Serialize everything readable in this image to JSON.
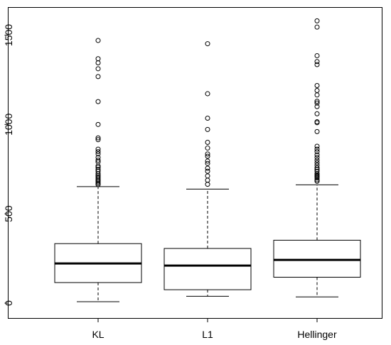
{
  "chart_data": {
    "type": "boxplot",
    "title": "",
    "xlabel": "",
    "ylabel": "",
    "ylim": [
      -20,
      1600
    ],
    "y_ticks": [
      0,
      500,
      1000,
      1500
    ],
    "y_tick_labels": [
      "0",
      "500",
      "1000",
      "1500"
    ],
    "grid": false,
    "categories": [
      "KL",
      "L1",
      "Hellinger"
    ],
    "boxes": [
      {
        "name": "KL",
        "whisker_low": 8,
        "q1": 115,
        "median": 222,
        "q3": 333,
        "whisker_high": 652,
        "outliers": [
          663,
          670,
          678,
          685,
          692,
          700,
          708,
          715,
          725,
          738,
          748,
          760,
          768,
          790,
          800,
          815,
          835,
          848,
          862,
          915,
          925,
          1000,
          1128,
          1268,
          1312,
          1345,
          1368,
          1470
        ]
      },
      {
        "name": "L1",
        "whisker_low": 38,
        "q1": 75,
        "median": 210,
        "q3": 306,
        "whisker_high": 638,
        "outliers": [
          665,
          688,
          712,
          738,
          755,
          782,
          795,
          822,
          835,
          868,
          900,
          972,
          1035,
          1172,
          1452
        ]
      },
      {
        "name": "Hellinger",
        "whisker_low": 35,
        "q1": 145,
        "median": 242,
        "q3": 352,
        "whisker_high": 662,
        "outliers": [
          682,
          690,
          700,
          708,
          712,
          718,
          725,
          738,
          748,
          758,
          772,
          786,
          800,
          815,
          830,
          848,
          862,
          878,
          960,
          1010,
          1015,
          1060,
          1100,
          1120,
          1130,
          1165,
          1190,
          1218,
          1335,
          1352,
          1385,
          1545,
          1580
        ]
      }
    ]
  }
}
